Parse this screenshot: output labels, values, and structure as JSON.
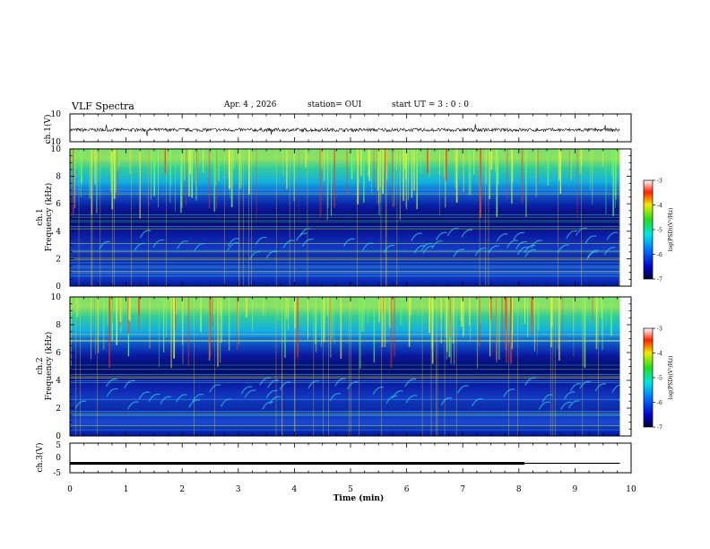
{
  "header": {
    "title": "VLF Spectra",
    "date": "Apr. 4 , 2026",
    "station": "station= OUI",
    "start": "start UT = 3 : 0 : 0"
  },
  "chart_data": [
    {
      "type": "line",
      "panel": "waveform-ch1",
      "ylabel": "ch.1(V)",
      "yticks": [
        "10",
        "-10"
      ],
      "ylim": [
        -10,
        10
      ],
      "xlim": [
        0,
        10
      ],
      "stop_x": 9.8,
      "series": [
        {
          "values_desc": "noisy signal near",
          "mean": -1.5,
          "spread": 1.2
        }
      ]
    },
    {
      "type": "heatmap",
      "panel": "spectrogram-ch1",
      "ylabel_line1": "ch.1",
      "ylabel_line2": "Frequency (kHz)",
      "yticks": [
        "0",
        "2",
        "4",
        "6",
        "8",
        "10"
      ],
      "ylim": [
        0,
        10
      ],
      "xlim": [
        0,
        10
      ],
      "stop_x": 9.8,
      "colorbar": {
        "label": "log(PSD)(V²/Hz)",
        "ticks": [
          "-3",
          "-4",
          "-5",
          "-6",
          "-7"
        ],
        "range": [
          -7,
          -3
        ]
      }
    },
    {
      "type": "heatmap",
      "panel": "spectrogram-ch2",
      "ylabel_line1": "ch.2",
      "ylabel_line2": "Frequency (kHz)",
      "yticks": [
        "0",
        "2",
        "4",
        "6",
        "8",
        "10"
      ],
      "ylim": [
        0,
        10
      ],
      "xlim": [
        0,
        10
      ],
      "stop_x": 9.8,
      "colorbar": {
        "label": "log(PSD)(V²/Hz)",
        "ticks": [
          "-3",
          "-4",
          "-5",
          "-6",
          "-7"
        ],
        "range": [
          -7,
          -3
        ]
      }
    },
    {
      "type": "line",
      "panel": "waveform-ch3",
      "ylabel": "ch.3(V)",
      "yticks": [
        "5",
        "0",
        "-5"
      ],
      "ylim": [
        -5,
        5
      ],
      "xlim": [
        0,
        10
      ],
      "xlabel": "Time (min)",
      "xticks": [
        "0",
        "1",
        "2",
        "3",
        "4",
        "5",
        "6",
        "7",
        "8",
        "9",
        "10"
      ],
      "series": [
        {
          "x": [
            0,
            8.1
          ],
          "y": [
            -1.8,
            -1.8
          ],
          "weight": "thick"
        },
        {
          "x": [
            8.1,
            9.8
          ],
          "y": [
            -1.8,
            -1.8
          ],
          "weight": "thin"
        }
      ]
    }
  ]
}
